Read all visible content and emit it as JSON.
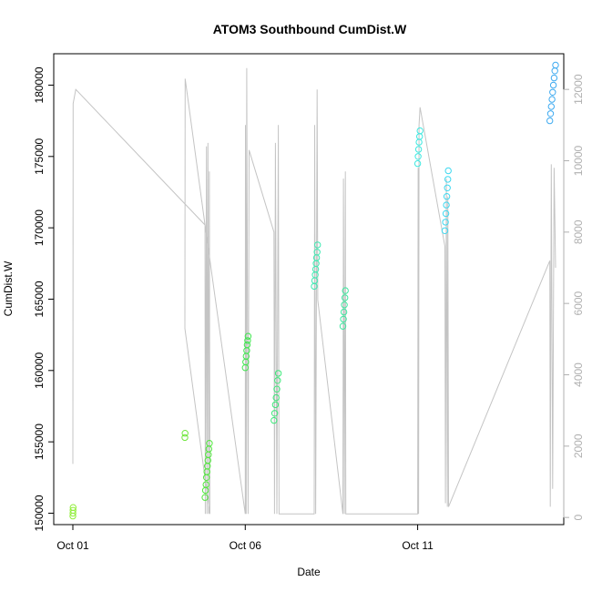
{
  "chart_data": {
    "type": "scatter",
    "title": "ATOM3 Southbound CumDist.W",
    "xlabel": "Date",
    "ylabel": "CumDist.W",
    "x_axis": {
      "type": "date",
      "range": [
        "2013-10-01",
        "2013-10-15"
      ],
      "ticks": [
        {
          "date": "2013-10-01",
          "label": "Oct 01"
        },
        {
          "date": "2013-10-06",
          "label": "Oct 06"
        },
        {
          "date": "2013-10-11",
          "label": "Oct 11"
        }
      ]
    },
    "y_left": {
      "range": [
        149200,
        182200
      ],
      "ticks": [
        150000,
        155000,
        160000,
        165000,
        170000,
        175000,
        180000
      ]
    },
    "y_right": {
      "range": [
        -200,
        13000
      ],
      "ticks": [
        0,
        2000,
        4000,
        6000,
        8000,
        10000,
        12000
      ],
      "color": "#b0b0b0"
    },
    "grid": false,
    "line_color": "#c4c4c4",
    "series": [
      {
        "color": "#90ee3a",
        "points": [
          [
            "2013-10-01T00:00",
            149800
          ],
          [
            "2013-10-01T00:04",
            150000
          ],
          [
            "2013-10-01T00:08",
            150200
          ],
          [
            "2013-10-01T00:12",
            150400
          ]
        ]
      },
      {
        "color": "#6ee63a",
        "points": [
          [
            "2013-10-04T06:00",
            155300
          ],
          [
            "2013-10-04T06:08",
            155600
          ]
        ]
      },
      {
        "color": "#50e83c",
        "points": [
          [
            "2013-10-04T20:00",
            151100
          ],
          [
            "2013-10-04T20:20",
            151600
          ],
          [
            "2013-10-04T20:40",
            152000
          ],
          [
            "2013-10-04T21:00",
            152500
          ],
          [
            "2013-10-04T21:20",
            152900
          ],
          [
            "2013-10-04T21:40",
            153300
          ],
          [
            "2013-10-04T22:00",
            153700
          ],
          [
            "2013-10-04T22:20",
            154100
          ],
          [
            "2013-10-04T22:40",
            154500
          ],
          [
            "2013-10-04T23:00",
            154900
          ]
        ]
      },
      {
        "color": "#3ee64e",
        "points": [
          [
            "2013-10-06T00:00",
            160200
          ],
          [
            "2013-10-06T00:20",
            160600
          ],
          [
            "2013-10-06T00:40",
            161000
          ],
          [
            "2013-10-06T01:00",
            161400
          ],
          [
            "2013-10-06T01:20",
            161800
          ],
          [
            "2013-10-06T01:40",
            162100
          ],
          [
            "2013-10-06T02:00",
            162400
          ]
        ]
      },
      {
        "color": "#3ee87a",
        "points": [
          [
            "2013-10-06T20:00",
            156500
          ],
          [
            "2013-10-06T20:30",
            157000
          ],
          [
            "2013-10-06T21:00",
            157600
          ],
          [
            "2013-10-06T21:30",
            158100
          ],
          [
            "2013-10-06T22:00",
            158700
          ],
          [
            "2013-10-06T22:30",
            159300
          ],
          [
            "2013-10-06T23:00",
            159800
          ]
        ]
      },
      {
        "color": "#3eeab2",
        "points": [
          [
            "2013-10-08T00:00",
            165900
          ],
          [
            "2013-10-08T00:20",
            166300
          ],
          [
            "2013-10-08T00:40",
            166700
          ],
          [
            "2013-10-08T01:00",
            167100
          ],
          [
            "2013-10-08T01:20",
            167500
          ],
          [
            "2013-10-08T01:40",
            167900
          ],
          [
            "2013-10-08T02:00",
            168300
          ],
          [
            "2013-10-08T02:20",
            168800
          ]
        ]
      },
      {
        "color": "#3ee8a0",
        "points": [
          [
            "2013-10-08T20:00",
            163100
          ],
          [
            "2013-10-08T20:20",
            163600
          ],
          [
            "2013-10-08T20:40",
            164100
          ],
          [
            "2013-10-08T21:00",
            164600
          ],
          [
            "2013-10-08T21:20",
            165100
          ],
          [
            "2013-10-08T21:40",
            165600
          ]
        ]
      },
      {
        "color": "#3ee8e0",
        "points": [
          [
            "2013-10-11T00:00",
            174500
          ],
          [
            "2013-10-11T00:20",
            175000
          ],
          [
            "2013-10-11T00:40",
            175500
          ],
          [
            "2013-10-11T01:00",
            176000
          ],
          [
            "2013-10-11T01:20",
            176400
          ],
          [
            "2013-10-11T01:40",
            176800
          ]
        ]
      },
      {
        "color": "#3ed8f0",
        "points": [
          [
            "2013-10-11T19:00",
            169800
          ],
          [
            "2013-10-11T19:20",
            170400
          ],
          [
            "2013-10-11T19:40",
            171000
          ],
          [
            "2013-10-11T20:00",
            171600
          ],
          [
            "2013-10-11T20:20",
            172200
          ],
          [
            "2013-10-11T20:40",
            172800
          ],
          [
            "2013-10-11T21:00",
            173400
          ],
          [
            "2013-10-11T21:20",
            174000
          ]
        ]
      },
      {
        "color": "#3eaaf0",
        "points": [
          [
            "2013-10-14T20:00",
            177500
          ],
          [
            "2013-10-14T20:30",
            178000
          ],
          [
            "2013-10-14T21:00",
            178500
          ],
          [
            "2013-10-14T21:30",
            179000
          ],
          [
            "2013-10-14T22:00",
            179500
          ],
          [
            "2013-10-14T22:30",
            180000
          ],
          [
            "2013-10-14T23:00",
            180500
          ],
          [
            "2013-10-14T23:30",
            181000
          ],
          [
            "2013-10-15T00:00",
            181400
          ]
        ]
      }
    ],
    "line_series": {
      "axis": "right",
      "points": [
        [
          "2013-10-01T00:00",
          1500
        ],
        [
          "2013-10-01T00:10",
          11600
        ],
        [
          "2013-10-01T02:00",
          12000
        ],
        [
          "2013-10-04T20:00",
          8200
        ],
        [
          "2013-10-04T20:10",
          100
        ],
        [
          "2013-10-04T21:00",
          10400
        ],
        [
          "2013-10-04T21:20",
          100
        ],
        [
          "2013-10-04T22:00",
          10500
        ],
        [
          "2013-10-04T22:30",
          100
        ],
        [
          "2013-10-04T23:00",
          9700
        ],
        [
          "2013-10-04T23:20",
          100
        ],
        [
          "2013-10-04T06:00",
          5300
        ],
        [
          "2013-10-04T06:10",
          12300
        ],
        [
          "2013-10-04T20:00",
          8200
        ],
        [
          "2013-10-06T00:00",
          100
        ],
        [
          "2013-10-06T00:10",
          11000
        ],
        [
          "2013-10-06T00:40",
          100
        ],
        [
          "2013-10-06T01:00",
          12600
        ],
        [
          "2013-10-06T02:00",
          100
        ],
        [
          "2013-10-06T02:40",
          10300
        ],
        [
          "2013-10-06T20:00",
          8000
        ],
        [
          "2013-10-06T20:20",
          100
        ],
        [
          "2013-10-06T21:00",
          10500
        ],
        [
          "2013-10-06T22:00",
          100
        ],
        [
          "2013-10-06T23:00",
          11000
        ],
        [
          "2013-10-06T23:30",
          100
        ],
        [
          "2013-10-08T00:00",
          100
        ],
        [
          "2013-10-08T00:20",
          11000
        ],
        [
          "2013-10-08T01:00",
          100
        ],
        [
          "2013-10-08T02:00",
          12000
        ],
        [
          "2013-10-08T02:30",
          6100
        ],
        [
          "2013-10-08T20:00",
          100
        ],
        [
          "2013-10-08T20:20",
          9500
        ],
        [
          "2013-10-08T21:00",
          100
        ],
        [
          "2013-10-08T21:40",
          9700
        ],
        [
          "2013-10-08T22:00",
          100
        ],
        [
          "2013-10-11T00:00",
          100
        ],
        [
          "2013-10-11T00:20",
          9800
        ],
        [
          "2013-10-11T00:40",
          100
        ],
        [
          "2013-10-11T01:00",
          11000
        ],
        [
          "2013-10-11T01:40",
          11500
        ],
        [
          "2013-10-11T19:00",
          7600
        ],
        [
          "2013-10-11T19:20",
          400
        ],
        [
          "2013-10-11T20:00",
          9500
        ],
        [
          "2013-10-11T20:40",
          300
        ],
        [
          "2013-10-11T21:00",
          9000
        ],
        [
          "2013-10-11T21:30",
          300
        ],
        [
          "2013-10-14T20:00",
          7200
        ],
        [
          "2013-10-14T20:20",
          300
        ],
        [
          "2013-10-14T21:00",
          9900
        ],
        [
          "2013-10-14T22:00",
          800
        ],
        [
          "2013-10-14T23:00",
          9800
        ],
        [
          "2013-10-15T00:00",
          7000
        ]
      ]
    }
  }
}
